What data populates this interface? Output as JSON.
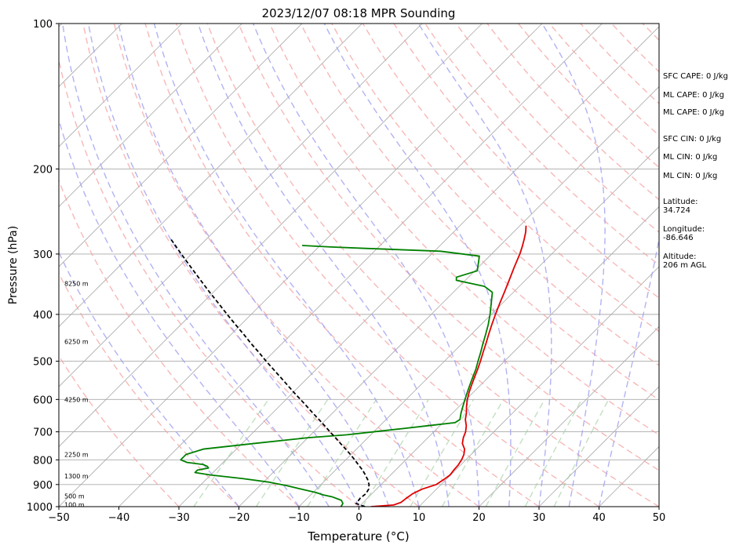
{
  "colors": {
    "temperature": "#e00000",
    "dewpoint": "#008000",
    "parcel": "#000000",
    "isotherm": "#aaaaaa",
    "dry_adiabat": "#f4a0a0",
    "moist_adiabat": "#9f9ff0",
    "mixing_ratio": "#99cc99"
  },
  "chart_data": {
    "type": "line",
    "title": "2023/12/07 08:18 MPR Sounding",
    "xlabel": "Temperature (°C)",
    "ylabel": "Pressure (hPa)",
    "xlim": [
      -50,
      50
    ],
    "ylim": [
      1000,
      100
    ],
    "y_scale": "log",
    "x_ticks": [
      "−50",
      "−40",
      "−30",
      "−20",
      "−10",
      "0",
      "10",
      "20",
      "30",
      "40",
      "50"
    ],
    "x_tick_values": [
      -50,
      -40,
      -30,
      -20,
      -10,
      0,
      10,
      20,
      30,
      40,
      50
    ],
    "y_ticks": [
      "100",
      "200",
      "300",
      "400",
      "500",
      "600",
      "700",
      "800",
      "900",
      "1000"
    ],
    "y_tick_values": [
      100,
      200,
      300,
      400,
      500,
      600,
      700,
      800,
      900,
      1000
    ],
    "grid": true,
    "height_labels": [
      {
        "p": 345,
        "text": "8250 m"
      },
      {
        "p": 455,
        "text": "6250 m"
      },
      {
        "p": 600,
        "text": "4250 m"
      },
      {
        "p": 780,
        "text": "2250 m"
      },
      {
        "p": 865,
        "text": "1300 m"
      },
      {
        "p": 950,
        "text": "500 m"
      },
      {
        "p": 990,
        "text": "100 m"
      }
    ],
    "series": [
      {
        "key": "temperature",
        "points": [
          [
            1000,
            2
          ],
          [
            992,
            5.5
          ],
          [
            980,
            6.3
          ],
          [
            960,
            6.5
          ],
          [
            940,
            6.8
          ],
          [
            920,
            7.6
          ],
          [
            900,
            9.2
          ],
          [
            880,
            9.6
          ],
          [
            860,
            9.9
          ],
          [
            840,
            9.7
          ],
          [
            820,
            9.6
          ],
          [
            800,
            9.3
          ],
          [
            780,
            8.8
          ],
          [
            760,
            8.0
          ],
          [
            740,
            6.7
          ],
          [
            720,
            5.9
          ],
          [
            700,
            5.3
          ],
          [
            680,
            4.4
          ],
          [
            660,
            3.2
          ],
          [
            640,
            2.3
          ],
          [
            620,
            1.2
          ],
          [
            600,
            0.2
          ],
          [
            580,
            -0.7
          ],
          [
            560,
            -1.5
          ],
          [
            540,
            -2.3
          ],
          [
            520,
            -3.1
          ],
          [
            500,
            -4.0
          ],
          [
            480,
            -5.0
          ],
          [
            460,
            -6.0
          ],
          [
            440,
            -7.1
          ],
          [
            420,
            -8.2
          ],
          [
            400,
            -9.3
          ],
          [
            380,
            -10.4
          ],
          [
            360,
            -11.5
          ],
          [
            340,
            -12.7
          ],
          [
            320,
            -14.0
          ],
          [
            300,
            -15.3
          ],
          [
            290,
            -16.1
          ],
          [
            280,
            -17.0
          ],
          [
            270,
            -18.0
          ],
          [
            262,
            -19.0
          ]
        ]
      },
      {
        "key": "dewpoint",
        "points": [
          [
            1000,
            -3
          ],
          [
            985,
            -3.2
          ],
          [
            970,
            -4.0
          ],
          [
            955,
            -6.0
          ],
          [
            945,
            -8.0
          ],
          [
            935,
            -9.5
          ],
          [
            925,
            -11.5
          ],
          [
            905,
            -15.5
          ],
          [
            890,
            -19.0
          ],
          [
            875,
            -24.0
          ],
          [
            860,
            -30.0
          ],
          [
            850,
            -33.0
          ],
          [
            840,
            -33.0
          ],
          [
            832,
            -31.5
          ],
          [
            825,
            -32.0
          ],
          [
            818,
            -33.0
          ],
          [
            810,
            -36.0
          ],
          [
            800,
            -37.5
          ],
          [
            780,
            -37.5
          ],
          [
            760,
            -35.5
          ],
          [
            740,
            -28.0
          ],
          [
            720,
            -20.0
          ],
          [
            710,
            -14.0
          ],
          [
            700,
            -10.0
          ],
          [
            690,
            -6.0
          ],
          [
            680,
            -2.0
          ],
          [
            670,
            2.0
          ],
          [
            660,
            2.3
          ],
          [
            640,
            1.4
          ],
          [
            620,
            0.6
          ],
          [
            600,
            -0.2
          ],
          [
            580,
            -1.0
          ],
          [
            560,
            -1.8
          ],
          [
            540,
            -2.6
          ],
          [
            520,
            -3.4
          ],
          [
            500,
            -4.4
          ],
          [
            480,
            -5.4
          ],
          [
            460,
            -6.5
          ],
          [
            440,
            -7.6
          ],
          [
            420,
            -8.8
          ],
          [
            400,
            -10.2
          ],
          [
            380,
            -11.8
          ],
          [
            360,
            -13.5
          ],
          [
            350,
            -15.8
          ],
          [
            340,
            -21.5
          ],
          [
            335,
            -22.0
          ],
          [
            325,
            -19.6
          ],
          [
            310,
            -21.0
          ],
          [
            303,
            -21.7
          ],
          [
            296,
            -29.0
          ],
          [
            292,
            -42.0
          ],
          [
            290,
            -48.0
          ],
          [
            288,
            -53.0
          ]
        ]
      },
      {
        "key": "parcel",
        "points": [
          [
            1000,
            1
          ],
          [
            985,
            -1.0
          ],
          [
            960,
            -1.2
          ],
          [
            940,
            -1.0
          ],
          [
            920,
            -1.3
          ],
          [
            900,
            -2.0
          ],
          [
            880,
            -3.0
          ],
          [
            860,
            -4.2
          ],
          [
            840,
            -5.5
          ],
          [
            820,
            -7.0
          ],
          [
            800,
            -8.5
          ],
          [
            780,
            -10.1
          ],
          [
            760,
            -11.8
          ],
          [
            740,
            -13.6
          ],
          [
            720,
            -15.4
          ],
          [
            700,
            -17.3
          ],
          [
            680,
            -19.2
          ],
          [
            660,
            -21.2
          ],
          [
            640,
            -23.3
          ],
          [
            620,
            -25.4
          ],
          [
            600,
            -27.6
          ],
          [
            580,
            -29.9
          ],
          [
            560,
            -32.2
          ],
          [
            540,
            -34.6
          ],
          [
            520,
            -37.1
          ],
          [
            500,
            -39.7
          ],
          [
            480,
            -42.3
          ],
          [
            460,
            -45.1
          ],
          [
            440,
            -47.9
          ],
          [
            420,
            -50.9
          ],
          [
            400,
            -54.0
          ],
          [
            380,
            -57.2
          ],
          [
            360,
            -60.6
          ],
          [
            340,
            -64.1
          ],
          [
            320,
            -67.8
          ],
          [
            300,
            -71.7
          ],
          [
            280,
            -75.8
          ]
        ]
      }
    ],
    "annotations": [
      "SFC CAPE: 0 J/kg",
      "ML CAPE: 0 J/kg",
      "ML CAPE: 0 J/kg",
      "SFC CIN: 0 J/kg",
      "ML CIN: 0 J/kg",
      "ML CIN: 0 J/kg"
    ]
  },
  "side_panel": {
    "sfc_cape": "SFC CAPE: 0 J/kg",
    "ml_cape": "ML CAPE: 0 J/kg",
    "ml_cape_2": "ML CAPE: 0 J/kg",
    "sfc_cin": "SFC CIN: 0 J/kg",
    "ml_cin": "ML CIN: 0 J/kg",
    "ml_cin_2": "ML CIN: 0 J/kg",
    "latitude_label": "Latitude:",
    "latitude_value": "34.724",
    "longitude_label": "Longitude:",
    "longitude_value": "-86.646",
    "altitude_label": "Altitude:",
    "altitude_value": "206 m AGL"
  }
}
